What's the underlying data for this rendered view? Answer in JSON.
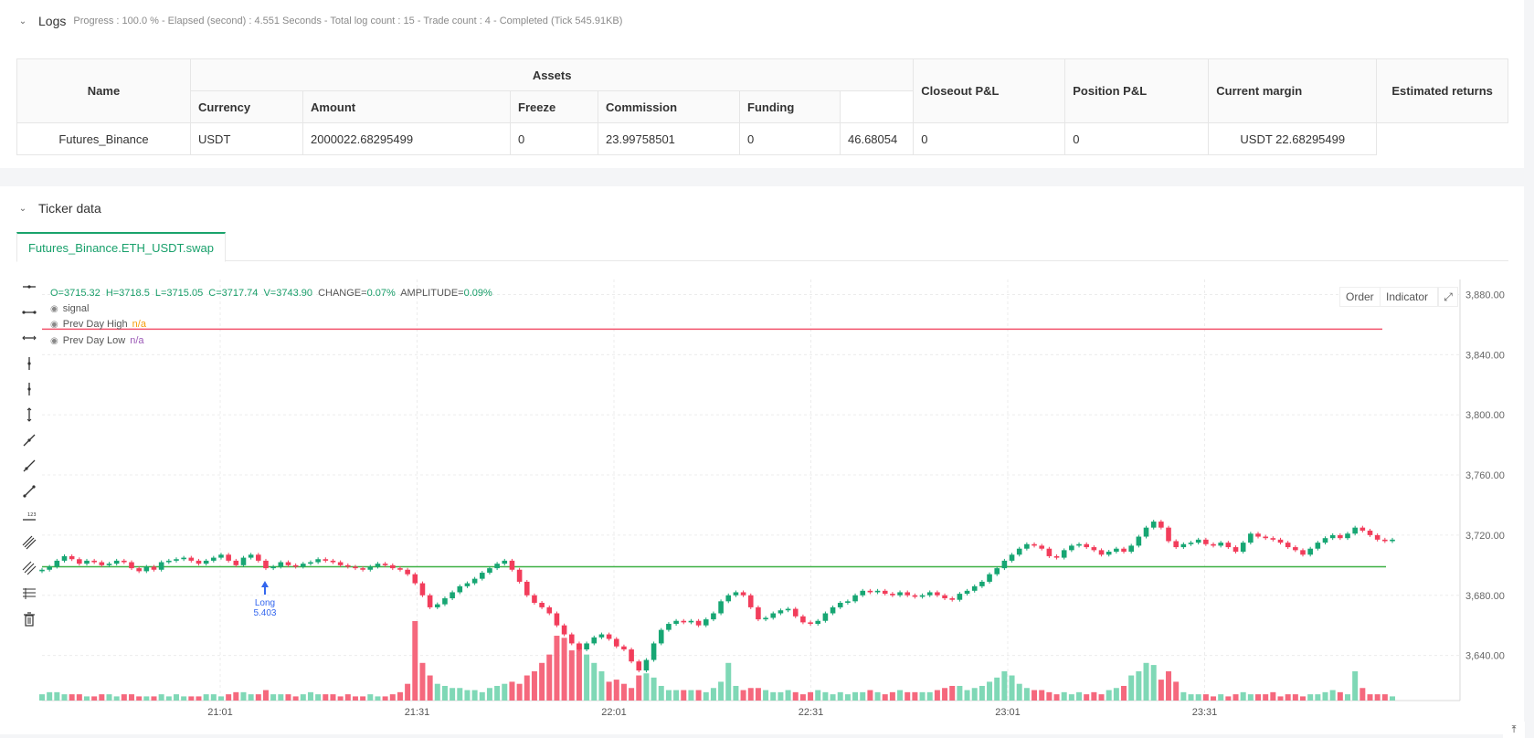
{
  "logs": {
    "title": "Logs",
    "status": "Progress : 100.0 % - Elapsed (second) :  4.551  Seconds - Total log count : 15 - Trade count : 4 - Completed (Tick 545.91KB)"
  },
  "assets_table": {
    "headers": {
      "name": "Name",
      "assets": "Assets",
      "currency": "Currency",
      "amount": "Amount",
      "freeze": "Freeze",
      "commission": "Commission",
      "funding": "Funding",
      "closeout": "Closeout P&L",
      "position": "Position P&L",
      "margin": "Current margin",
      "returns": "Estimated returns"
    },
    "row": {
      "name": "Futures_Binance",
      "currency": "USDT",
      "amount": "2000022.68295499",
      "freeze": "0",
      "commission": "23.99758501",
      "funding": "0",
      "closeout": "46.68054",
      "position": "0",
      "margin": "0",
      "returns": "USDT 22.68295499"
    }
  },
  "ticker": {
    "title": "Ticker data",
    "tab": "Futures_Binance.ETH_USDT.swap"
  },
  "chart_legend": {
    "o": "O=3715.32",
    "h": "H=3718.5",
    "l": "L=3715.05",
    "c": "C=3717.74",
    "v": "V=3743.90",
    "change": "CHANGE=0.07%",
    "amplitude": "AMPLITUDE=0.09%",
    "signal": "signal",
    "prev_high": "Prev Day High",
    "prev_high_val": "n/a",
    "prev_low": "Prev Day Low",
    "prev_low_val": "n/a"
  },
  "chart_buttons": {
    "order": "Order",
    "indicator": "Indicator"
  },
  "colors": {
    "up": "#26a69a",
    "down": "#ef5350",
    "high_line": "#f2536d",
    "low_line": "#3cb043",
    "accent": "#1aa36c"
  },
  "chart_data": {
    "type": "candlestick",
    "y_ticks": [
      "3,880.00",
      "3,840.00",
      "3,800.00",
      "3,760.00",
      "3,720.00",
      "3,680.00",
      "3,640.00"
    ],
    "y_tick_values": [
      3880,
      3840,
      3800,
      3760,
      3720,
      3680,
      3640
    ],
    "ylim": [
      3610,
      3890
    ],
    "x_ticks": [
      "21:01",
      "21:31",
      "22:01",
      "22:31",
      "23:01",
      "23:31"
    ],
    "prev_day_high": 3857,
    "prev_day_low": 3699,
    "marker": {
      "label": "Long",
      "value": "5.403",
      "index": 30
    },
    "closes": [
      3697,
      3699,
      3703,
      3706,
      3704,
      3701,
      3703,
      3702,
      3700,
      3701,
      3703,
      3702,
      3698,
      3696,
      3699,
      3697,
      3702,
      3703,
      3704,
      3705,
      3703,
      3701,
      3703,
      3705,
      3707,
      3703,
      3700,
      3705,
      3707,
      3703,
      3698,
      3699,
      3702,
      3700,
      3699,
      3701,
      3702,
      3704,
      3703,
      3702,
      3700,
      3699,
      3698,
      3697,
      3699,
      3701,
      3700,
      3698,
      3697,
      3694,
      3688,
      3680,
      3672,
      3674,
      3678,
      3682,
      3686,
      3688,
      3691,
      3695,
      3698,
      3701,
      3703,
      3697,
      3689,
      3680,
      3675,
      3672,
      3668,
      3660,
      3654,
      3648,
      3644,
      3648,
      3652,
      3654,
      3651,
      3646,
      3644,
      3636,
      3630,
      3637,
      3648,
      3657,
      3661,
      3663,
      3662,
      3663,
      3660,
      3664,
      3668,
      3676,
      3680,
      3682,
      3680,
      3672,
      3664,
      3665,
      3668,
      3670,
      3671,
      3666,
      3662,
      3661,
      3663,
      3668,
      3672,
      3675,
      3676,
      3680,
      3683,
      3682,
      3683,
      3681,
      3680,
      3682,
      3680,
      3679,
      3680,
      3682,
      3680,
      3678,
      3677,
      3681,
      3683,
      3686,
      3689,
      3694,
      3698,
      3703,
      3707,
      3711,
      3714,
      3713,
      3711,
      3706,
      3705,
      3710,
      3713,
      3714,
      3712,
      3710,
      3707,
      3709,
      3711,
      3709,
      3713,
      3719,
      3725,
      3729,
      3725,
      3716,
      3712,
      3714,
      3715,
      3717,
      3714,
      3713,
      3715,
      3712,
      3709,
      3715,
      3721,
      3719,
      3718,
      3717,
      3715,
      3712,
      3710,
      3707,
      3711,
      3715,
      3718,
      3720,
      3718,
      3721,
      3725,
      3723,
      3720,
      3717,
      3716,
      3717
    ],
    "volumes": [
      3,
      4,
      4,
      3,
      3,
      3,
      2,
      2,
      3,
      3,
      2,
      3,
      3,
      2,
      2,
      2,
      3,
      2,
      3,
      2,
      2,
      2,
      3,
      3,
      2,
      3,
      4,
      4,
      3,
      3,
      5,
      3,
      3,
      3,
      2,
      3,
      4,
      3,
      3,
      3,
      2,
      3,
      2,
      2,
      3,
      2,
      2,
      3,
      4,
      8,
      38,
      18,
      12,
      8,
      7,
      6,
      6,
      5,
      5,
      4,
      6,
      7,
      8,
      9,
      8,
      12,
      14,
      18,
      22,
      31,
      30,
      24,
      27,
      22,
      18,
      14,
      9,
      10,
      8,
      6,
      12,
      13,
      11,
      7,
      5,
      5,
      5,
      5,
      5,
      4,
      6,
      9,
      18,
      7,
      5,
      6,
      6,
      5,
      4,
      4,
      5,
      4,
      3,
      4,
      5,
      4,
      3,
      4,
      3,
      4,
      4,
      5,
      4,
      3,
      4,
      5,
      4,
      4,
      4,
      4,
      5,
      6,
      7,
      7,
      5,
      6,
      7,
      9,
      11,
      14,
      12,
      8,
      6,
      5,
      5,
      4,
      3,
      4,
      3,
      4,
      3,
      4,
      3,
      5,
      6,
      7,
      12,
      14,
      18,
      17,
      10,
      14,
      9,
      4,
      3,
      3,
      3,
      2,
      3,
      2,
      3,
      4,
      3,
      3,
      3,
      4,
      2,
      3,
      3,
      2,
      3,
      3,
      4,
      5,
      4,
      3,
      14,
      6,
      3,
      3,
      3,
      2
    ]
  }
}
